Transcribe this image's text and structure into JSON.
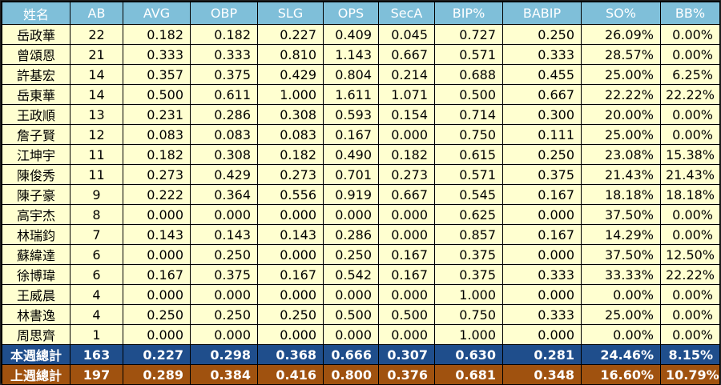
{
  "table": {
    "headers": [
      "姓名",
      "AB",
      "AVG",
      "OBP",
      "SLG",
      "OPS",
      "SecA",
      "BIP%",
      "BABIP",
      "SO%",
      "BB%"
    ],
    "rows": [
      [
        "岳政華",
        "22",
        "0.182",
        "0.182",
        "0.227",
        "0.409",
        "0.045",
        "0.727",
        "0.250",
        "26.09%",
        "0.00%"
      ],
      [
        "曾頌恩",
        "21",
        "0.333",
        "0.333",
        "0.810",
        "1.143",
        "0.667",
        "0.571",
        "0.333",
        "28.57%",
        "0.00%"
      ],
      [
        "許基宏",
        "14",
        "0.357",
        "0.375",
        "0.429",
        "0.804",
        "0.214",
        "0.688",
        "0.455",
        "25.00%",
        "6.25%"
      ],
      [
        "岳東華",
        "14",
        "0.500",
        "0.611",
        "1.000",
        "1.611",
        "1.071",
        "0.500",
        "0.667",
        "22.22%",
        "22.22%"
      ],
      [
        "王政順",
        "13",
        "0.231",
        "0.286",
        "0.308",
        "0.593",
        "0.154",
        "0.714",
        "0.300",
        "20.00%",
        "0.00%"
      ],
      [
        "詹子賢",
        "12",
        "0.083",
        "0.083",
        "0.083",
        "0.167",
        "0.000",
        "0.750",
        "0.111",
        "25.00%",
        "0.00%"
      ],
      [
        "江坤宇",
        "11",
        "0.182",
        "0.308",
        "0.182",
        "0.490",
        "0.182",
        "0.615",
        "0.250",
        "23.08%",
        "15.38%"
      ],
      [
        "陳俊秀",
        "11",
        "0.273",
        "0.429",
        "0.273",
        "0.701",
        "0.273",
        "0.571",
        "0.375",
        "21.43%",
        "21.43%"
      ],
      [
        "陳子豪",
        "9",
        "0.222",
        "0.364",
        "0.556",
        "0.919",
        "0.667",
        "0.545",
        "0.167",
        "18.18%",
        "18.18%"
      ],
      [
        "高宇杰",
        "8",
        "0.000",
        "0.000",
        "0.000",
        "0.000",
        "0.000",
        "0.625",
        "0.000",
        "37.50%",
        "0.00%"
      ],
      [
        "林瑞鈞",
        "7",
        "0.143",
        "0.143",
        "0.143",
        "0.286",
        "0.000",
        "0.857",
        "0.167",
        "14.29%",
        "0.00%"
      ],
      [
        "蘇緯達",
        "6",
        "0.000",
        "0.250",
        "0.000",
        "0.250",
        "0.167",
        "0.375",
        "0.000",
        "37.50%",
        "12.50%"
      ],
      [
        "徐博瑋",
        "6",
        "0.167",
        "0.375",
        "0.167",
        "0.542",
        "0.167",
        "0.375",
        "0.333",
        "33.33%",
        "22.22%"
      ],
      [
        "王威晨",
        "4",
        "0.000",
        "0.000",
        "0.000",
        "0.000",
        "0.000",
        "1.000",
        "0.000",
        "0.00%",
        "0.00%"
      ],
      [
        "林書逸",
        "4",
        "0.250",
        "0.250",
        "0.250",
        "0.500",
        "0.500",
        "0.750",
        "0.333",
        "25.00%",
        "0.00%"
      ],
      [
        "周思齊",
        "1",
        "0.000",
        "0.000",
        "0.000",
        "0.000",
        "0.000",
        "1.000",
        "0.000",
        "0.00%",
        "0.00%"
      ]
    ],
    "totals": [
      [
        "本週總計",
        "163",
        "0.227",
        "0.298",
        "0.368",
        "0.666",
        "0.307",
        "0.630",
        "0.281",
        "24.46%",
        "8.15%"
      ],
      [
        "上週總計",
        "197",
        "0.289",
        "0.384",
        "0.416",
        "0.800",
        "0.376",
        "0.681",
        "0.348",
        "16.60%",
        "10.79%"
      ]
    ]
  },
  "colors": {
    "header_bg": "#7fbfd9",
    "body_bg": "#ffffd0",
    "this_week_bg": "#1f4e8c",
    "last_week_bg": "#a0520f"
  }
}
